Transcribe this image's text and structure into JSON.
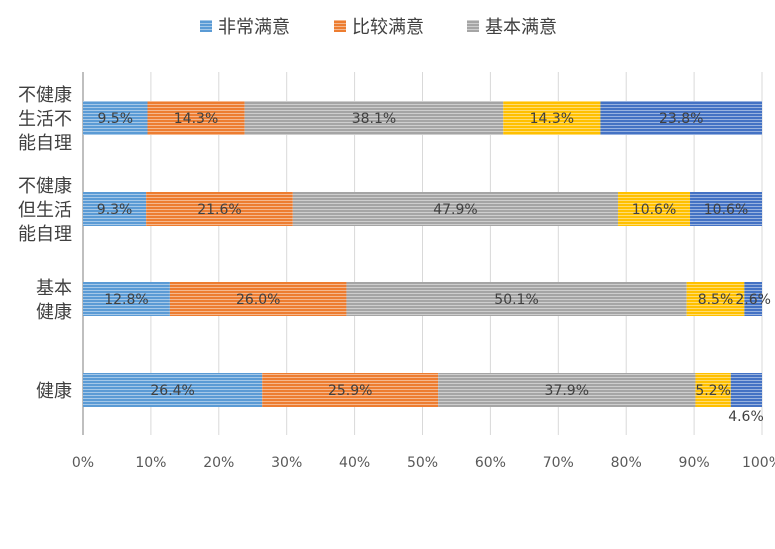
{
  "chart_data": {
    "type": "bar",
    "orientation": "horizontal",
    "stacked": "percent",
    "categories": [
      "不健康\n生活不\n能自理",
      "不健康\n但生活\n能自理",
      "基本\n健康",
      "健康"
    ],
    "series": [
      {
        "name": "非常满意",
        "color": "#5B9BD5",
        "values": [
          9.5,
          9.3,
          12.8,
          26.4
        ]
      },
      {
        "name": "比较满意",
        "color": "#ED7D31",
        "values": [
          14.3,
          21.6,
          26.0,
          25.9
        ]
      },
      {
        "name": "基本满意",
        "color": "#A5A5A5",
        "values": [
          38.1,
          47.9,
          50.1,
          37.9
        ]
      },
      {
        "name": "",
        "color": "#FFC000",
        "values": [
          14.3,
          10.6,
          8.5,
          5.2
        ]
      },
      {
        "name": "",
        "color": "#4472C4",
        "values": [
          23.8,
          10.6,
          2.6,
          4.6
        ]
      }
    ],
    "data_labels": [
      [
        "9.5%",
        "14.3%",
        "38.1%",
        "14.3%",
        "23.8%"
      ],
      [
        "9.3%",
        "21.6%",
        "47.9%",
        "10.6%",
        "10.6%"
      ],
      [
        "12.8%",
        "26.0%",
        "50.1%",
        "8.5%",
        "2.6%"
      ],
      [
        "26.4%",
        "25.9%",
        "37.9%",
        "5.2%",
        "4.6%"
      ]
    ],
    "xticks": [
      "0%",
      "10%",
      "20%",
      "30%",
      "40%",
      "50%",
      "60%",
      "70%",
      "80%",
      "90%",
      "100%"
    ],
    "xlim": [
      0,
      100
    ],
    "grid": true,
    "legend": "top",
    "title": "",
    "xlabel": "",
    "ylabel": ""
  }
}
